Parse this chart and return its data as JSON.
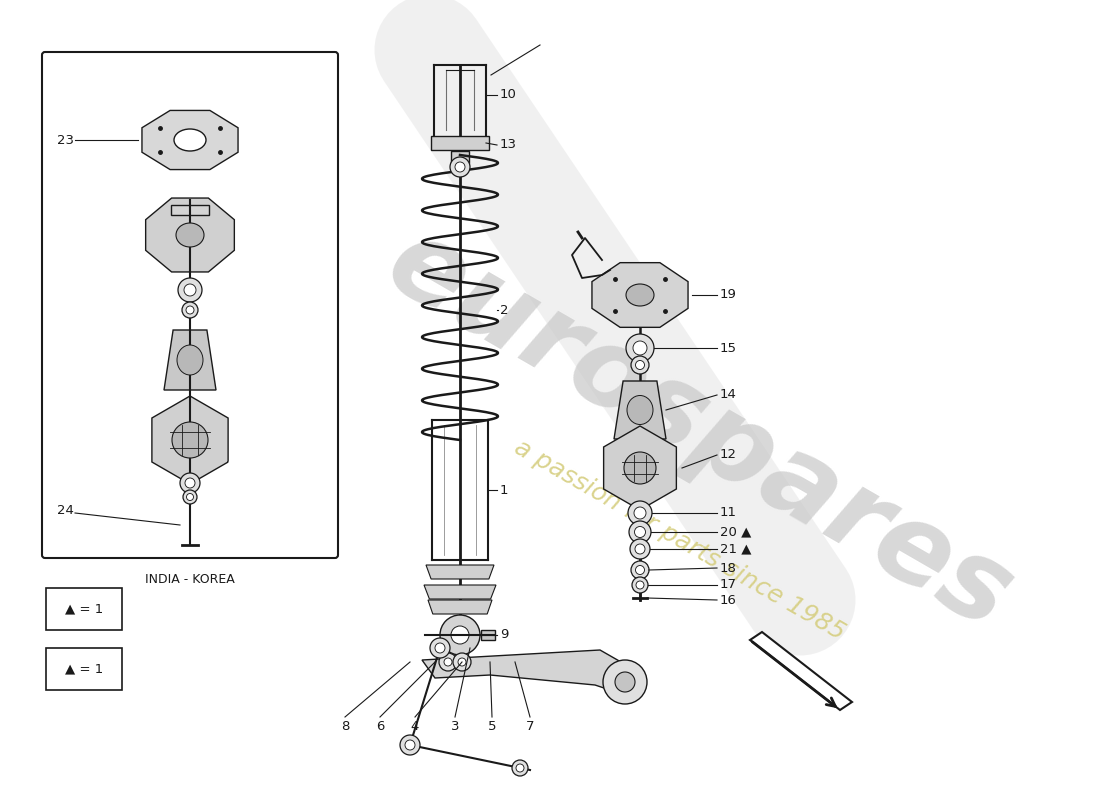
{
  "background_color": "#ffffff",
  "line_color": "#1a1a1a",
  "watermark_text1": "eurospares",
  "watermark_text2": "a passion for parts since 1985",
  "watermark_color": "#c8c8c8",
  "watermark_color2": "#d4cc7a",
  "india_korea_label": "INDIA - KOREA",
  "legend_text": "▲ = 1",
  "figsize": [
    11.0,
    8.0
  ],
  "dpi": 100
}
